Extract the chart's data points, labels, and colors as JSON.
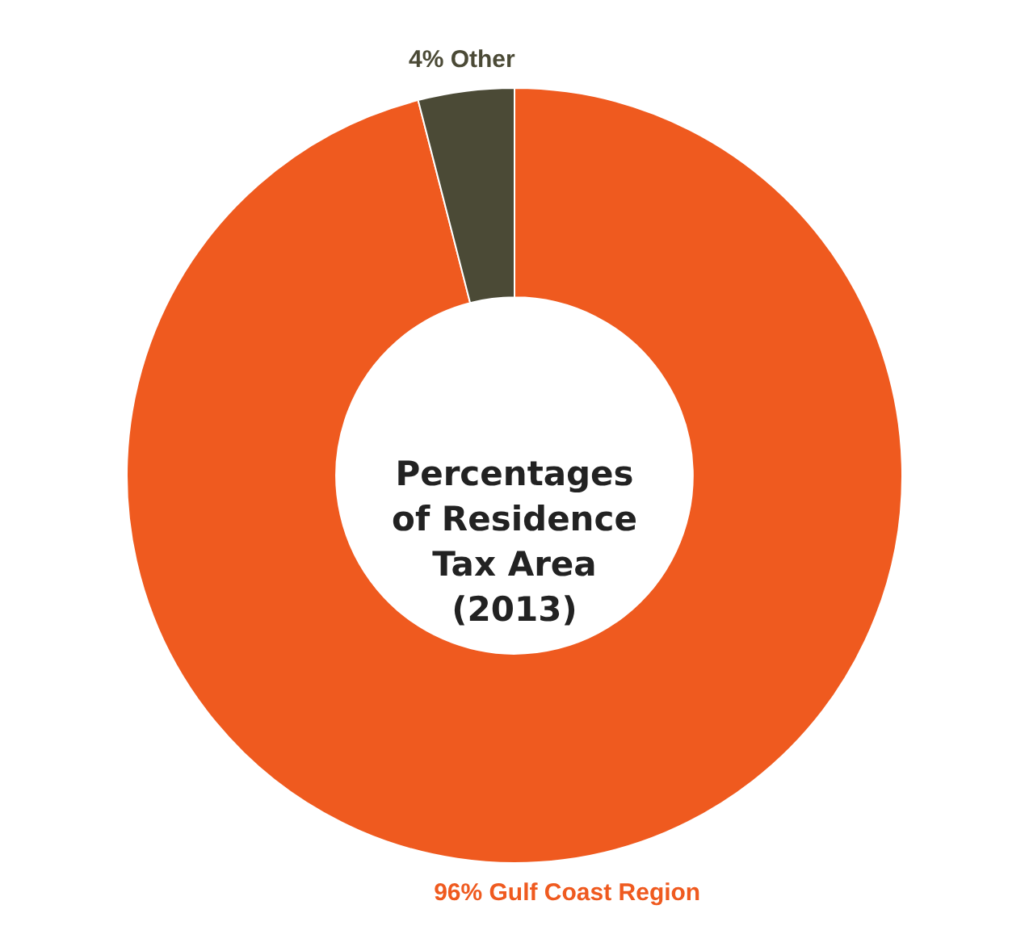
{
  "chart_data": {
    "type": "donut",
    "title": "Percentages of Residence Tax Area (2013)",
    "categories": [
      "Gulf Coast Region",
      "Other"
    ],
    "values": [
      96,
      4
    ],
    "colors": [
      "#ef5a1f",
      "#4b4a36"
    ],
    "value_labels": [
      "96%",
      "4%"
    ],
    "legend": false
  }
}
